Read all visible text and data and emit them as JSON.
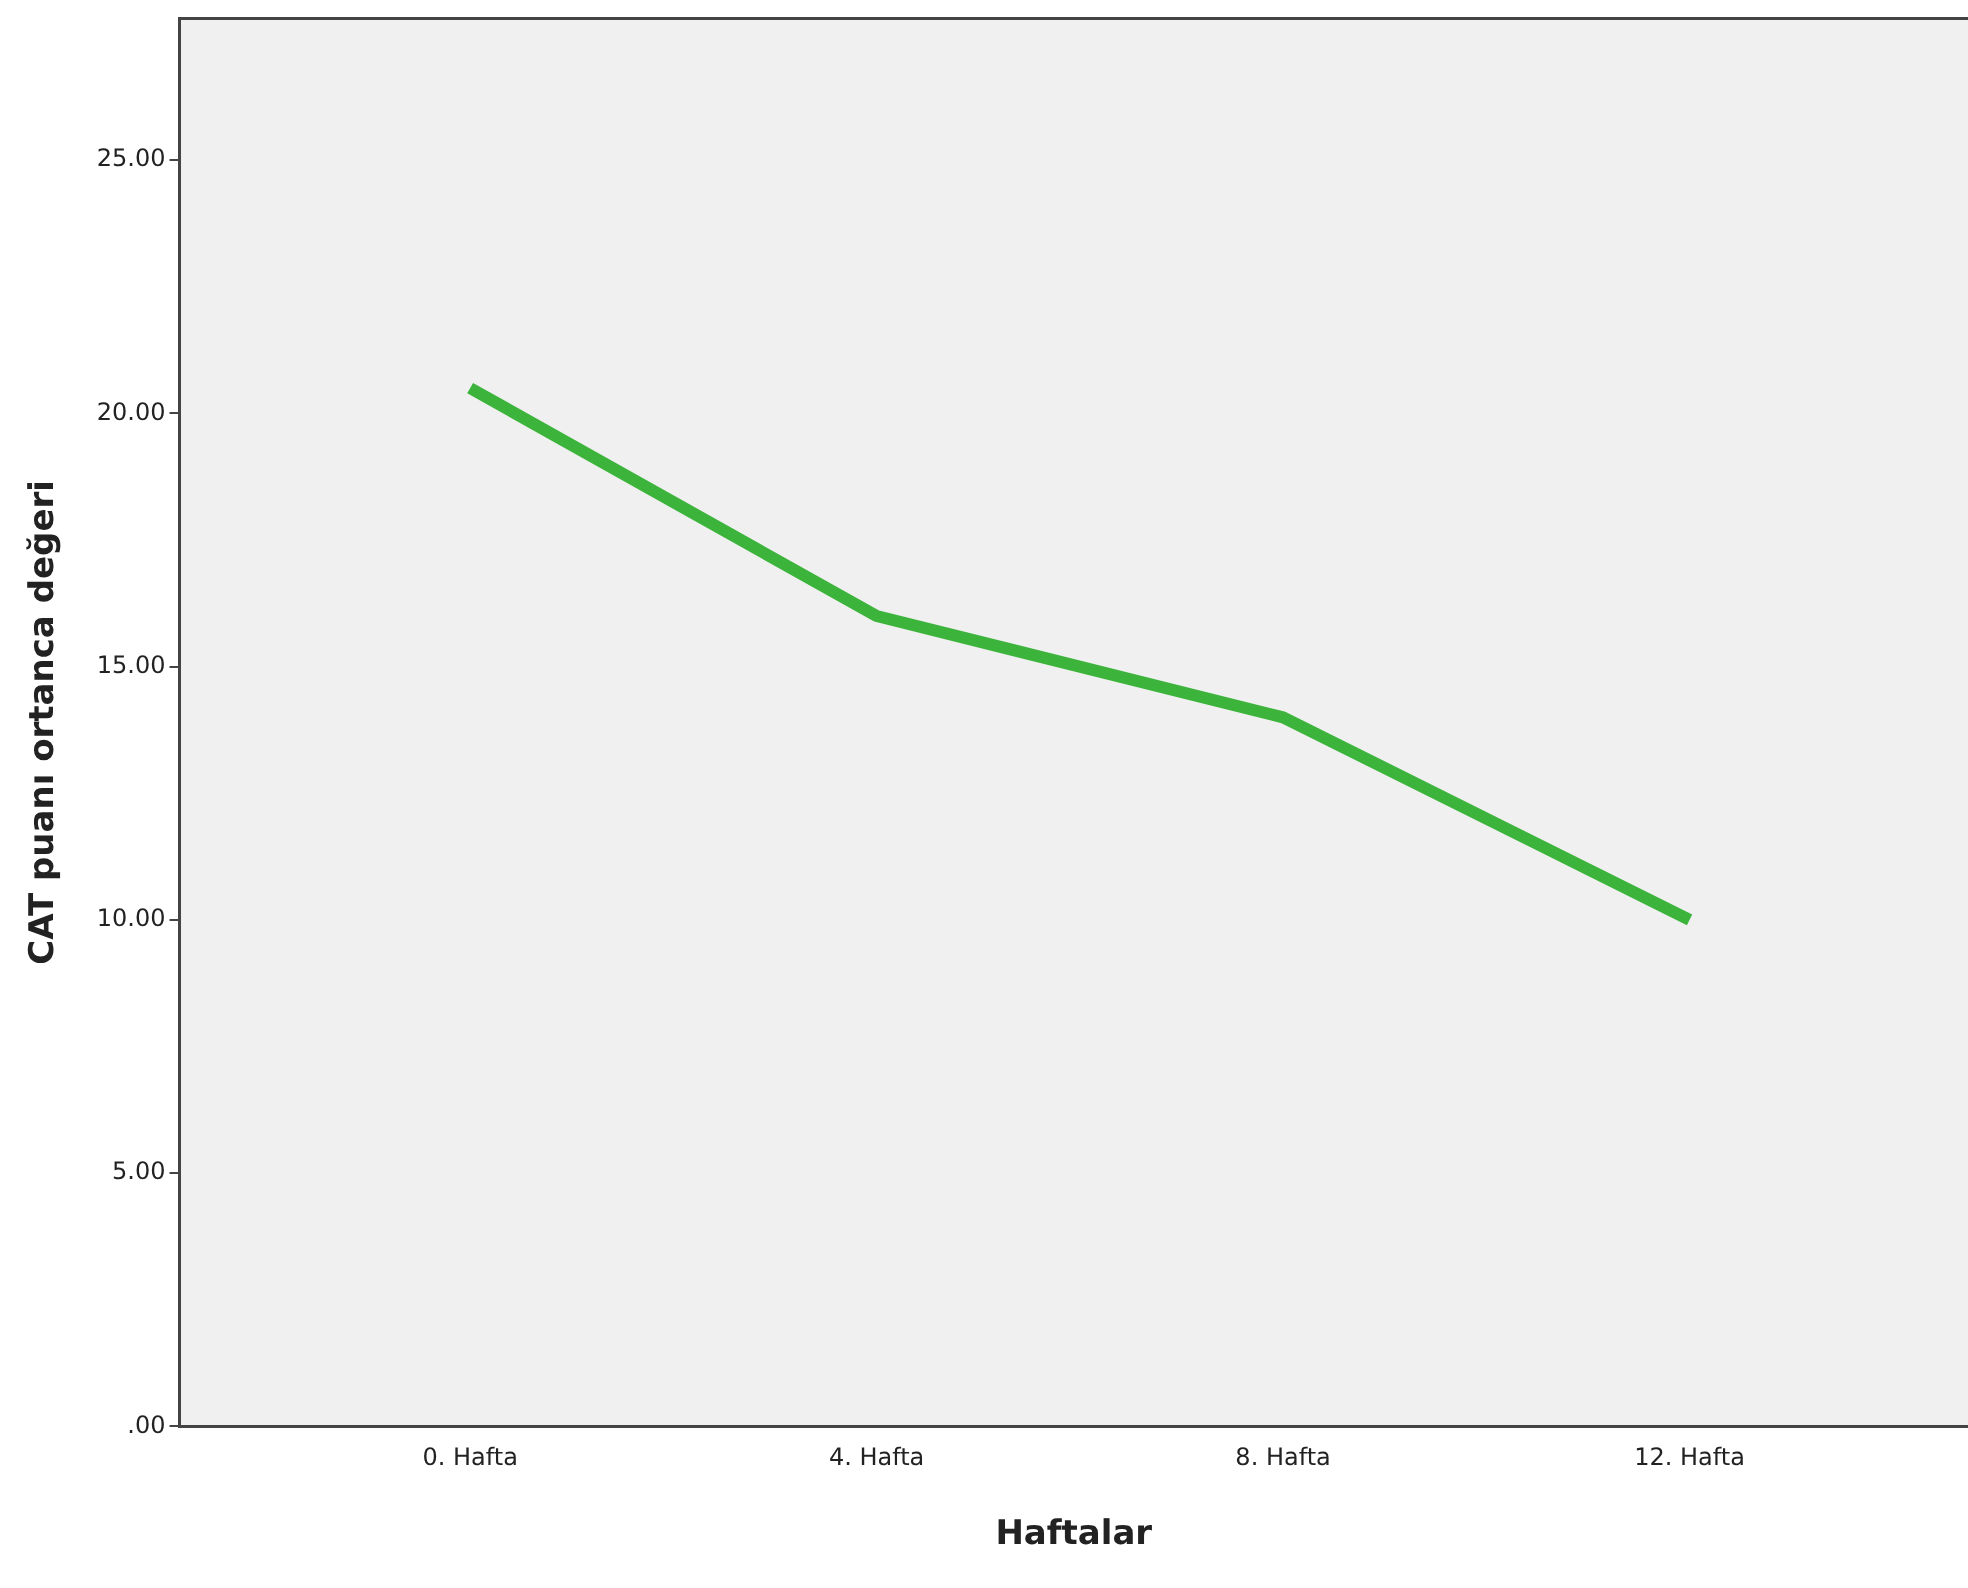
{
  "chart_data": {
    "type": "line",
    "xlabel": "Haftalar",
    "ylabel": "CAT puanı ortanca değeri",
    "categories": [
      "0. Hafta",
      "4. Hafta",
      "8. Hafta",
      "12. Hafta"
    ],
    "series": [
      {
        "color": "#3cb43c",
        "values": [
          20.5,
          16.0,
          14.0,
          10.0
        ]
      }
    ],
    "ylim": [
      0,
      27.8
    ],
    "yticks": [
      {
        "value": 0,
        "label": ".00"
      },
      {
        "value": 5,
        "label": "5.00"
      },
      {
        "value": 10,
        "label": "10.00"
      },
      {
        "value": 15,
        "label": "15.00"
      },
      {
        "value": 20,
        "label": "20.00"
      },
      {
        "value": 25,
        "label": "25.00"
      }
    ],
    "grid": false,
    "legend": false,
    "marker": "none",
    "line_style": "solid"
  }
}
